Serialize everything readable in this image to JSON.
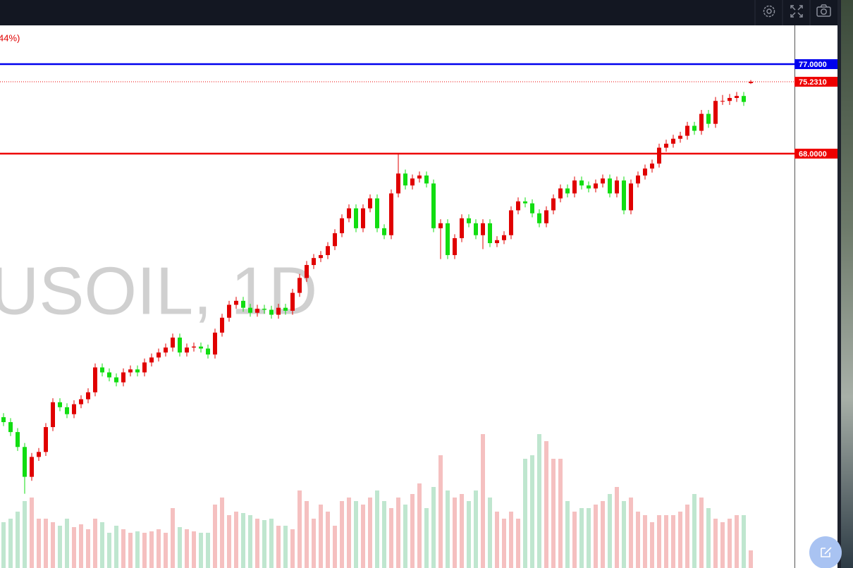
{
  "chart_data": {
    "type": "candlestick",
    "title": "USOIL, 1D",
    "header_text": "44%)",
    "ylim": [
      26.33,
      80.9
    ],
    "up_color": "#e00000",
    "down_color": "#11dd11",
    "volume_up_color": "#f5c0c0",
    "volume_down_color": "#bfe6cf",
    "levels": [
      {
        "value": 77,
        "label": "77.0000",
        "color": "#0000ee"
      },
      {
        "value": 68,
        "label": "68.0000",
        "color": "#ee0000"
      }
    ],
    "last_price": {
      "value": 75.231,
      "label": "75.2310",
      "color": "#ee0000"
    },
    "candles": [
      [
        41.5,
        41.9,
        40.6,
        41.0
      ],
      [
        41.0,
        41.4,
        39.6,
        40.0
      ],
      [
        40.0,
        40.4,
        38.1,
        38.5
      ],
      [
        38.5,
        38.9,
        33.8,
        35.5
      ],
      [
        35.5,
        37.9,
        35.1,
        37.5
      ],
      [
        37.5,
        38.4,
        37.1,
        38.0
      ],
      [
        38.0,
        40.9,
        37.6,
        40.5
      ],
      [
        40.5,
        43.4,
        40.1,
        43.0
      ],
      [
        43.0,
        43.4,
        42.1,
        42.5
      ],
      [
        42.5,
        42.9,
        41.4,
        41.8
      ],
      [
        41.8,
        43.2,
        41.4,
        42.8
      ],
      [
        42.8,
        43.7,
        42.4,
        43.3
      ],
      [
        43.3,
        44.4,
        42.9,
        44.0
      ],
      [
        44.0,
        46.9,
        43.6,
        46.5
      ],
      [
        46.5,
        46.9,
        45.6,
        46.0
      ],
      [
        46.0,
        46.4,
        45.1,
        45.5
      ],
      [
        45.5,
        45.9,
        44.6,
        45.0
      ],
      [
        45.0,
        46.4,
        44.6,
        46.0
      ],
      [
        46.0,
        46.7,
        45.6,
        46.3
      ],
      [
        46.3,
        46.7,
        45.6,
        46.0
      ],
      [
        46.0,
        47.4,
        45.6,
        47.0
      ],
      [
        47.0,
        47.9,
        46.6,
        47.5
      ],
      [
        47.5,
        48.4,
        47.1,
        48.0
      ],
      [
        48.0,
        48.9,
        47.6,
        48.5
      ],
      [
        48.5,
        49.9,
        48.1,
        49.5
      ],
      [
        49.5,
        49.9,
        47.6,
        48.0
      ],
      [
        48.0,
        48.9,
        47.6,
        48.5
      ],
      [
        48.5,
        49.0,
        48.1,
        48.6
      ],
      [
        48.6,
        49.0,
        48.0,
        48.4
      ],
      [
        48.4,
        48.8,
        47.4,
        47.8
      ],
      [
        47.8,
        50.4,
        47.4,
        50.0
      ],
      [
        50.0,
        51.9,
        49.6,
        51.5
      ],
      [
        51.5,
        53.2,
        51.1,
        52.8
      ],
      [
        52.8,
        53.6,
        52.4,
        53.2
      ],
      [
        53.2,
        53.6,
        52.1,
        52.5
      ],
      [
        52.5,
        52.9,
        51.6,
        52.0
      ],
      [
        52.0,
        52.8,
        51.6,
        52.4
      ],
      [
        52.4,
        52.8,
        51.9,
        52.3
      ],
      [
        52.3,
        52.7,
        51.4,
        51.8
      ],
      [
        51.8,
        52.9,
        51.4,
        52.5
      ],
      [
        52.5,
        52.9,
        51.8,
        52.2
      ],
      [
        52.2,
        54.4,
        51.8,
        54.0
      ],
      [
        54.0,
        55.9,
        53.6,
        55.5
      ],
      [
        55.5,
        57.2,
        55.1,
        56.8
      ],
      [
        56.8,
        57.9,
        56.4,
        57.5
      ],
      [
        57.5,
        58.2,
        57.1,
        57.8
      ],
      [
        57.8,
        59.1,
        57.4,
        58.7
      ],
      [
        58.7,
        60.4,
        58.3,
        60.0
      ],
      [
        60.0,
        61.9,
        59.6,
        61.5
      ],
      [
        61.5,
        62.9,
        61.1,
        62.5
      ],
      [
        62.5,
        62.9,
        60.1,
        60.5
      ],
      [
        60.5,
        62.9,
        60.1,
        62.5
      ],
      [
        62.5,
        63.9,
        62.1,
        63.5
      ],
      [
        63.5,
        63.9,
        60.1,
        60.5
      ],
      [
        60.5,
        60.9,
        59.4,
        59.8
      ],
      [
        59.8,
        64.4,
        59.4,
        64.0
      ],
      [
        64.0,
        68.0,
        63.6,
        66.0
      ],
      [
        66.0,
        66.4,
        64.4,
        64.8
      ],
      [
        64.8,
        65.9,
        64.4,
        65.5
      ],
      [
        65.5,
        66.2,
        65.1,
        65.8
      ],
      [
        65.8,
        66.2,
        64.6,
        65.0
      ],
      [
        65.0,
        65.4,
        60.1,
        60.5
      ],
      [
        60.5,
        61.4,
        57.4,
        61.0
      ],
      [
        61.0,
        61.4,
        57.4,
        57.8
      ],
      [
        57.8,
        59.9,
        57.4,
        59.5
      ],
      [
        59.5,
        61.9,
        59.1,
        61.5
      ],
      [
        61.5,
        61.9,
        60.6,
        61.0
      ],
      [
        61.0,
        61.4,
        59.4,
        59.8
      ],
      [
        59.8,
        61.4,
        58.4,
        61.0
      ],
      [
        61.0,
        61.4,
        58.6,
        59.0
      ],
      [
        59.0,
        59.7,
        58.6,
        59.3
      ],
      [
        59.3,
        60.2,
        58.9,
        59.8
      ],
      [
        59.8,
        62.7,
        59.4,
        62.3
      ],
      [
        62.3,
        63.6,
        61.9,
        63.2
      ],
      [
        63.2,
        63.6,
        62.6,
        63.0
      ],
      [
        63.0,
        63.4,
        61.6,
        62.0
      ],
      [
        62.0,
        62.4,
        60.6,
        61.0
      ],
      [
        61.0,
        62.7,
        60.6,
        62.3
      ],
      [
        62.3,
        63.9,
        61.9,
        63.5
      ],
      [
        63.5,
        64.9,
        63.1,
        64.5
      ],
      [
        64.5,
        64.9,
        63.6,
        64.0
      ],
      [
        64.0,
        65.7,
        63.6,
        65.3
      ],
      [
        65.3,
        65.7,
        64.4,
        64.8
      ],
      [
        64.8,
        65.2,
        64.1,
        64.5
      ],
      [
        64.5,
        65.4,
        64.1,
        65.0
      ],
      [
        65.0,
        65.9,
        64.6,
        65.5
      ],
      [
        65.5,
        65.9,
        63.6,
        64.0
      ],
      [
        64.0,
        65.7,
        63.6,
        65.3
      ],
      [
        65.3,
        65.7,
        61.9,
        62.3
      ],
      [
        62.3,
        65.4,
        61.9,
        65.0
      ],
      [
        65.0,
        66.2,
        64.6,
        65.8
      ],
      [
        65.8,
        66.9,
        65.4,
        66.5
      ],
      [
        66.5,
        67.4,
        66.1,
        67.0
      ],
      [
        67.0,
        69.0,
        66.6,
        68.6
      ],
      [
        68.6,
        69.4,
        68.2,
        69.0
      ],
      [
        69.0,
        69.9,
        68.6,
        69.5
      ],
      [
        69.5,
        70.2,
        69.1,
        69.8
      ],
      [
        69.8,
        71.2,
        69.4,
        70.8
      ],
      [
        70.8,
        71.2,
        69.9,
        70.3
      ],
      [
        70.3,
        72.4,
        69.9,
        72.0
      ],
      [
        72.0,
        72.4,
        70.6,
        71.0
      ],
      [
        71.0,
        73.7,
        70.6,
        73.3
      ],
      [
        73.3,
        73.9,
        72.9,
        73.3
      ],
      [
        73.3,
        74.0,
        72.9,
        73.6
      ],
      [
        73.6,
        74.2,
        73.2,
        73.8
      ],
      [
        73.8,
        74.2,
        72.8,
        73.2
      ],
      [
        75.1,
        75.4,
        75.0,
        75.231
      ]
    ],
    "volumes": [
      65,
      70,
      80,
      95,
      100,
      70,
      70,
      65,
      60,
      70,
      58,
      62,
      55,
      70,
      65,
      50,
      60,
      55,
      50,
      52,
      50,
      52,
      55,
      50,
      85,
      58,
      55,
      52,
      50,
      50,
      90,
      100,
      75,
      80,
      78,
      75,
      70,
      68,
      70,
      60,
      60,
      55,
      110,
      95,
      70,
      90,
      80,
      60,
      95,
      100,
      95,
      90,
      100,
      110,
      95,
      85,
      100,
      90,
      105,
      120,
      85,
      115,
      160,
      110,
      100,
      105,
      95,
      110,
      190,
      100,
      80,
      70,
      80,
      70,
      155,
      160,
      190,
      180,
      155,
      155,
      95,
      80,
      85,
      85,
      90,
      95,
      105,
      115,
      95,
      100,
      80,
      75,
      65,
      75,
      75,
      75,
      80,
      90,
      105,
      100,
      85,
      70,
      65,
      70,
      75,
      75,
      25
    ]
  }
}
